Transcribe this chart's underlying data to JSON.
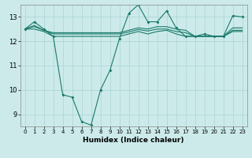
{
  "x": [
    0,
    1,
    2,
    3,
    4,
    5,
    6,
    7,
    8,
    9,
    10,
    11,
    12,
    13,
    14,
    15,
    16,
    17,
    18,
    19,
    20,
    21,
    22,
    23
  ],
  "line1": [
    12.5,
    12.8,
    12.5,
    12.2,
    9.8,
    9.7,
    8.7,
    8.55,
    10.0,
    10.8,
    12.1,
    13.15,
    13.5,
    12.8,
    12.8,
    13.25,
    12.55,
    12.2,
    12.2,
    12.3,
    12.2,
    12.2,
    13.05,
    13.0
  ],
  "line2": [
    12.5,
    12.65,
    12.45,
    12.35,
    12.35,
    12.35,
    12.35,
    12.35,
    12.35,
    12.35,
    12.35,
    12.45,
    12.55,
    12.5,
    12.6,
    12.6,
    12.5,
    12.45,
    12.2,
    12.2,
    12.2,
    12.2,
    12.55,
    12.55
  ],
  "line3": [
    12.5,
    12.6,
    12.45,
    12.3,
    12.3,
    12.3,
    12.3,
    12.3,
    12.3,
    12.3,
    12.3,
    12.38,
    12.48,
    12.42,
    12.5,
    12.5,
    12.4,
    12.35,
    12.2,
    12.2,
    12.2,
    12.2,
    12.45,
    12.45
  ],
  "line4": [
    12.5,
    12.5,
    12.4,
    12.2,
    12.2,
    12.2,
    12.2,
    12.2,
    12.2,
    12.2,
    12.2,
    12.3,
    12.4,
    12.3,
    12.4,
    12.45,
    12.3,
    12.2,
    12.2,
    12.2,
    12.2,
    12.2,
    12.4,
    12.4
  ],
  "color": "#1a7a6a",
  "bg_color": "#cceaea",
  "grid_color": "#aad4d4",
  "xlabel": "Humidex (Indice chaleur)",
  "ylim_min": 8.5,
  "ylim_max": 13.5,
  "yticks": [
    9,
    10,
    11,
    12,
    13
  ],
  "xticks": [
    0,
    1,
    2,
    3,
    4,
    5,
    6,
    7,
    8,
    9,
    10,
    11,
    12,
    13,
    14,
    15,
    16,
    17,
    18,
    19,
    20,
    21,
    22,
    23
  ]
}
